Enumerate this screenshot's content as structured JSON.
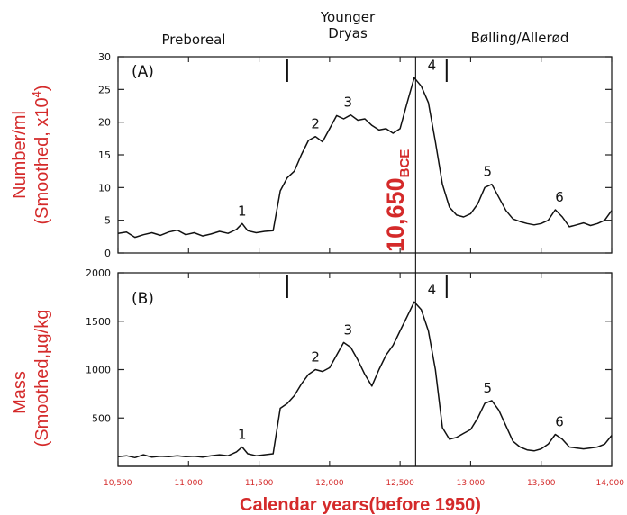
{
  "chart_data": [
    {
      "type": "line",
      "panel_label": "(A)",
      "ylabel_line1": "Number/ml",
      "ylabel_line2": "(Smoothed, x10",
      "ylabel_sup": "4",
      "ylabel_close": ")",
      "ylim": [
        0,
        30
      ],
      "yticks": [
        "0",
        "5",
        "10",
        "15",
        "20",
        "25",
        "30"
      ],
      "xlim": [
        10500,
        14000
      ],
      "grid": false,
      "peaks": [
        {
          "label": "1",
          "x": 11380,
          "y": 4.5
        },
        {
          "label": "2",
          "x": 11900,
          "y": 17.8
        },
        {
          "label": "3",
          "x": 12130,
          "y": 21.1
        },
        {
          "label": "4",
          "x": 12610,
          "y": 26.8
        },
        {
          "label": "5",
          "x": 13120,
          "y": 10.5
        },
        {
          "label": "6",
          "x": 13630,
          "y": 6.6
        }
      ],
      "series": [
        {
          "x": [
            10500,
            10560,
            10620,
            10680,
            10740,
            10800,
            10860,
            10920,
            10980,
            11040,
            11100,
            11160,
            11220,
            11280,
            11340,
            11380,
            11420,
            11480,
            11540,
            11600,
            11650,
            11700,
            11750,
            11800,
            11850,
            11900,
            11950,
            12000,
            12050,
            12100,
            12150,
            12200,
            12250,
            12300,
            12350,
            12400,
            12450,
            12500,
            12550,
            12600,
            12650,
            12700,
            12750,
            12800,
            12850,
            12900,
            12950,
            13000,
            13050,
            13100,
            13150,
            13200,
            13250,
            13300,
            13350,
            13400,
            13450,
            13500,
            13550,
            13600,
            13650,
            13700,
            13750,
            13800,
            13850,
            13900,
            13950,
            14000
          ],
          "y": [
            3,
            3.2,
            2.4,
            2.8,
            3.1,
            2.7,
            3.2,
            3.5,
            2.8,
            3.1,
            2.6,
            2.9,
            3.3,
            3.0,
            3.6,
            4.5,
            3.4,
            3.1,
            3.3,
            3.4,
            9.5,
            11.5,
            12.5,
            15,
            17.2,
            17.8,
            17.0,
            19,
            21,
            20.5,
            21.1,
            20.3,
            20.5,
            19.5,
            18.8,
            19.0,
            18.3,
            19,
            23,
            26.8,
            25.5,
            23,
            17,
            10.5,
            7,
            5.8,
            5.5,
            6,
            7.5,
            10,
            10.5,
            8.5,
            6.5,
            5.2,
            4.8,
            4.5,
            4.3,
            4.5,
            5,
            6.6,
            5.5,
            4.0,
            4.3,
            4.6,
            4.2,
            4.5,
            5,
            6.5
          ]
        }
      ]
    },
    {
      "type": "line",
      "panel_label": "(B)",
      "ylabel_line1": "Mass",
      "ylabel_line2": "(Smoothed,µg/kg",
      "ylim": [
        0,
        2000
      ],
      "yticks": [
        "500",
        "1000",
        "1500",
        "2000"
      ],
      "ytick_values": [
        500,
        1000,
        1500,
        2000
      ],
      "xlim": [
        10500,
        14000
      ],
      "grid": false,
      "peaks": [
        {
          "label": "1",
          "x": 11380,
          "y": 200
        },
        {
          "label": "2",
          "x": 11900,
          "y": 1000
        },
        {
          "label": "3",
          "x": 12130,
          "y": 1280
        },
        {
          "label": "4",
          "x": 12610,
          "y": 1700
        },
        {
          "label": "5",
          "x": 13120,
          "y": 680
        },
        {
          "label": "6",
          "x": 13630,
          "y": 330
        }
      ],
      "series": [
        {
          "x": [
            10500,
            10560,
            10620,
            10680,
            10740,
            10800,
            10860,
            10920,
            10980,
            11040,
            11100,
            11160,
            11220,
            11280,
            11340,
            11380,
            11420,
            11480,
            11540,
            11600,
            11650,
            11700,
            11750,
            11800,
            11850,
            11900,
            11950,
            12000,
            12050,
            12100,
            12150,
            12200,
            12250,
            12300,
            12350,
            12400,
            12450,
            12500,
            12550,
            12600,
            12650,
            12700,
            12750,
            12800,
            12850,
            12900,
            12950,
            13000,
            13050,
            13100,
            13150,
            13200,
            13250,
            13300,
            13350,
            13400,
            13450,
            13500,
            13550,
            13600,
            13650,
            13700,
            13750,
            13800,
            13850,
            13900,
            13950,
            14000
          ],
          "y": [
            100,
            110,
            90,
            120,
            95,
            105,
            100,
            110,
            100,
            105,
            95,
            110,
            120,
            110,
            150,
            200,
            130,
            110,
            120,
            130,
            600,
            650,
            730,
            850,
            950,
            1000,
            980,
            1020,
            1150,
            1280,
            1230,
            1100,
            950,
            830,
            1000,
            1150,
            1250,
            1400,
            1550,
            1700,
            1620,
            1400,
            1000,
            400,
            280,
            300,
            340,
            380,
            500,
            650,
            680,
            580,
            420,
            260,
            200,
            170,
            160,
            180,
            230,
            330,
            280,
            200,
            190,
            180,
            190,
            200,
            230,
            320
          ]
        }
      ]
    }
  ],
  "x_axis": {
    "label": "Calendar years(before 1950)",
    "ticks": [
      "10,500",
      "11,000",
      "11,500",
      "12,000",
      "12,500",
      "13,000",
      "13,500",
      "14,000"
    ],
    "tick_values": [
      10500,
      11000,
      11500,
      12000,
      12500,
      13000,
      13500,
      14000
    ]
  },
  "periods": [
    {
      "name": "Preboreal",
      "x": 11030
    },
    {
      "line1": "Younger",
      "line2": "Dryas",
      "x": 12130
    },
    {
      "name": "Bølling/Allerød",
      "x": 13380
    }
  ],
  "boundaries": [
    11700,
    12830
  ],
  "marker": {
    "x": 12610,
    "label_main": "10,650",
    "label_sub": "BCE"
  },
  "colors": {
    "red": "#d42a2a",
    "ink": "#111111"
  }
}
